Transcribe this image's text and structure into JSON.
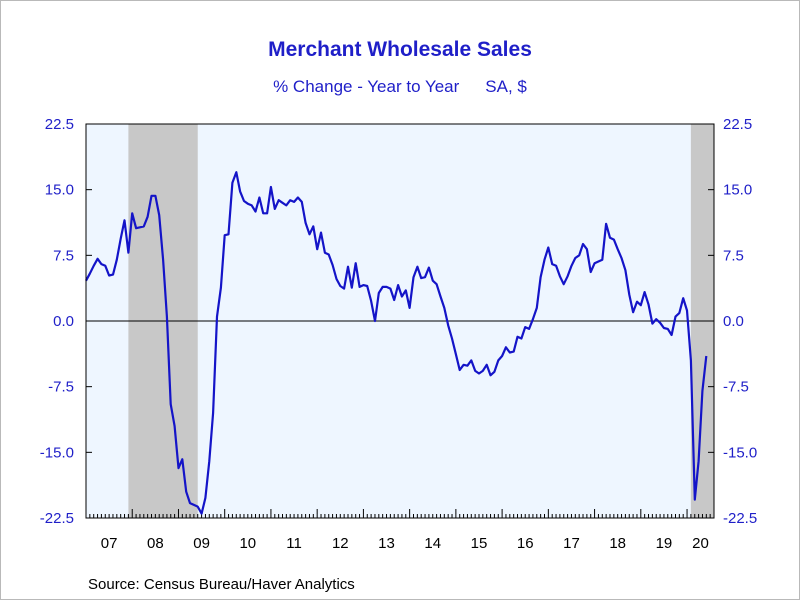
{
  "chart_data": {
    "type": "line",
    "title": "Merchant Wholesale Sales",
    "subtitle_parts": [
      "% Change - Year to Year",
      "SA, $"
    ],
    "source": "Source:  Census Bureau/Haver Analytics",
    "ylim": [
      -22.5,
      22.5
    ],
    "y_ticks": [
      "22.5",
      "15.0",
      "7.5",
      "0.0",
      "-7.5",
      "-15.0",
      "-22.5"
    ],
    "x_range": [
      2007.0,
      2020.583
    ],
    "x_tick_labels": [
      "07",
      "08",
      "09",
      "10",
      "11",
      "12",
      "13",
      "14",
      "15",
      "16",
      "17",
      "18",
      "19",
      "20"
    ],
    "grid": false,
    "zero_line": true,
    "recessions": [
      [
        2007.917,
        2009.417
      ],
      [
        2020.083,
        2020.583
      ]
    ],
    "colors": {
      "line": "#1414c8",
      "plot_background": "#eef6ff",
      "recession": "#c8c8c8",
      "text": "#1f1fc8"
    },
    "series": [
      {
        "points": [
          [
            2007.0,
            4.6
          ],
          [
            2007.083,
            5.4
          ],
          [
            2007.167,
            6.3
          ],
          [
            2007.25,
            7.1
          ],
          [
            2007.333,
            6.5
          ],
          [
            2007.417,
            6.3
          ],
          [
            2007.5,
            5.2
          ],
          [
            2007.583,
            5.3
          ],
          [
            2007.667,
            7.0
          ],
          [
            2007.75,
            9.4
          ],
          [
            2007.833,
            11.5
          ],
          [
            2007.917,
            7.8
          ],
          [
            2008.0,
            12.3
          ],
          [
            2008.083,
            10.6
          ],
          [
            2008.167,
            10.7
          ],
          [
            2008.25,
            10.8
          ],
          [
            2008.333,
            11.9
          ],
          [
            2008.417,
            14.3
          ],
          [
            2008.5,
            14.3
          ],
          [
            2008.583,
            12.1
          ],
          [
            2008.667,
            7.0
          ],
          [
            2008.75,
            0.5
          ],
          [
            2008.833,
            -9.5
          ],
          [
            2008.917,
            -12.0
          ],
          [
            2009.0,
            -16.8
          ],
          [
            2009.083,
            -15.8
          ],
          [
            2009.167,
            -19.5
          ],
          [
            2009.25,
            -20.8
          ],
          [
            2009.333,
            -21.0
          ],
          [
            2009.417,
            -21.2
          ],
          [
            2009.5,
            -22.0
          ],
          [
            2009.583,
            -20.2
          ],
          [
            2009.667,
            -16.0
          ],
          [
            2009.75,
            -10.5
          ],
          [
            2009.833,
            0.5
          ],
          [
            2009.917,
            3.8
          ],
          [
            2010.0,
            9.8
          ],
          [
            2010.083,
            9.9
          ],
          [
            2010.167,
            15.8
          ],
          [
            2010.25,
            17.0
          ],
          [
            2010.333,
            14.8
          ],
          [
            2010.417,
            13.7
          ],
          [
            2010.5,
            13.4
          ],
          [
            2010.583,
            13.2
          ],
          [
            2010.667,
            12.5
          ],
          [
            2010.75,
            14.1
          ],
          [
            2010.833,
            12.3
          ],
          [
            2010.917,
            12.3
          ],
          [
            2011.0,
            15.3
          ],
          [
            2011.083,
            12.8
          ],
          [
            2011.167,
            13.8
          ],
          [
            2011.25,
            13.5
          ],
          [
            2011.333,
            13.2
          ],
          [
            2011.417,
            13.8
          ],
          [
            2011.5,
            13.6
          ],
          [
            2011.583,
            14.1
          ],
          [
            2011.667,
            13.6
          ],
          [
            2011.75,
            11.2
          ],
          [
            2011.833,
            9.9
          ],
          [
            2011.917,
            10.8
          ],
          [
            2012.0,
            8.2
          ],
          [
            2012.083,
            10.1
          ],
          [
            2012.167,
            7.8
          ],
          [
            2012.25,
            7.6
          ],
          [
            2012.333,
            6.4
          ],
          [
            2012.417,
            4.8
          ],
          [
            2012.5,
            4.0
          ],
          [
            2012.583,
            3.7
          ],
          [
            2012.667,
            6.2
          ],
          [
            2012.75,
            3.8
          ],
          [
            2012.833,
            6.6
          ],
          [
            2012.917,
            3.9
          ],
          [
            2013.0,
            4.1
          ],
          [
            2013.083,
            4.0
          ],
          [
            2013.167,
            2.3
          ],
          [
            2013.25,
            0.0
          ],
          [
            2013.333,
            3.2
          ],
          [
            2013.417,
            3.9
          ],
          [
            2013.5,
            3.9
          ],
          [
            2013.583,
            3.7
          ],
          [
            2013.667,
            2.4
          ],
          [
            2013.75,
            4.1
          ],
          [
            2013.833,
            2.8
          ],
          [
            2013.917,
            3.5
          ],
          [
            2014.0,
            1.5
          ],
          [
            2014.083,
            5.0
          ],
          [
            2014.167,
            6.2
          ],
          [
            2014.25,
            4.9
          ],
          [
            2014.333,
            5.0
          ],
          [
            2014.417,
            6.1
          ],
          [
            2014.5,
            4.6
          ],
          [
            2014.583,
            4.2
          ],
          [
            2014.667,
            2.8
          ],
          [
            2014.75,
            1.5
          ],
          [
            2014.833,
            -0.5
          ],
          [
            2014.917,
            -2.0
          ],
          [
            2015.0,
            -3.8
          ],
          [
            2015.083,
            -5.6
          ],
          [
            2015.167,
            -5.0
          ],
          [
            2015.25,
            -5.1
          ],
          [
            2015.333,
            -4.5
          ],
          [
            2015.417,
            -5.7
          ],
          [
            2015.5,
            -6.0
          ],
          [
            2015.583,
            -5.7
          ],
          [
            2015.667,
            -5.0
          ],
          [
            2015.75,
            -6.2
          ],
          [
            2015.833,
            -5.8
          ],
          [
            2015.917,
            -4.5
          ],
          [
            2016.0,
            -4.0
          ],
          [
            2016.083,
            -3.0
          ],
          [
            2016.167,
            -3.6
          ],
          [
            2016.25,
            -3.5
          ],
          [
            2016.333,
            -1.8
          ],
          [
            2016.417,
            -2.0
          ],
          [
            2016.5,
            -0.7
          ],
          [
            2016.583,
            -0.9
          ],
          [
            2016.667,
            0.2
          ],
          [
            2016.75,
            1.5
          ],
          [
            2016.833,
            5.0
          ],
          [
            2016.917,
            7.0
          ],
          [
            2017.0,
            8.4
          ],
          [
            2017.083,
            6.5
          ],
          [
            2017.167,
            6.3
          ],
          [
            2017.25,
            5.1
          ],
          [
            2017.333,
            4.2
          ],
          [
            2017.417,
            5.1
          ],
          [
            2017.5,
            6.3
          ],
          [
            2017.583,
            7.2
          ],
          [
            2017.667,
            7.5
          ],
          [
            2017.75,
            8.8
          ],
          [
            2017.833,
            8.2
          ],
          [
            2017.917,
            5.6
          ],
          [
            2018.0,
            6.6
          ],
          [
            2018.083,
            6.8
          ],
          [
            2018.167,
            7.0
          ],
          [
            2018.25,
            11.1
          ],
          [
            2018.333,
            9.5
          ],
          [
            2018.417,
            9.3
          ],
          [
            2018.5,
            8.2
          ],
          [
            2018.583,
            7.2
          ],
          [
            2018.667,
            5.8
          ],
          [
            2018.75,
            3.0
          ],
          [
            2018.833,
            1.0
          ],
          [
            2018.917,
            2.2
          ],
          [
            2019.0,
            1.8
          ],
          [
            2019.083,
            3.3
          ],
          [
            2019.167,
            1.9
          ],
          [
            2019.25,
            -0.3
          ],
          [
            2019.333,
            0.2
          ],
          [
            2019.417,
            -0.2
          ],
          [
            2019.5,
            -0.8
          ],
          [
            2019.583,
            -0.9
          ],
          [
            2019.667,
            -1.6
          ],
          [
            2019.75,
            0.5
          ],
          [
            2019.833,
            0.9
          ],
          [
            2019.917,
            2.6
          ],
          [
            2020.0,
            1.2
          ],
          [
            2020.083,
            -4.5
          ],
          [
            2020.167,
            -20.4
          ],
          [
            2020.25,
            -16.0
          ],
          [
            2020.333,
            -8.0
          ],
          [
            2020.417,
            -4.0
          ]
        ]
      }
    ]
  }
}
